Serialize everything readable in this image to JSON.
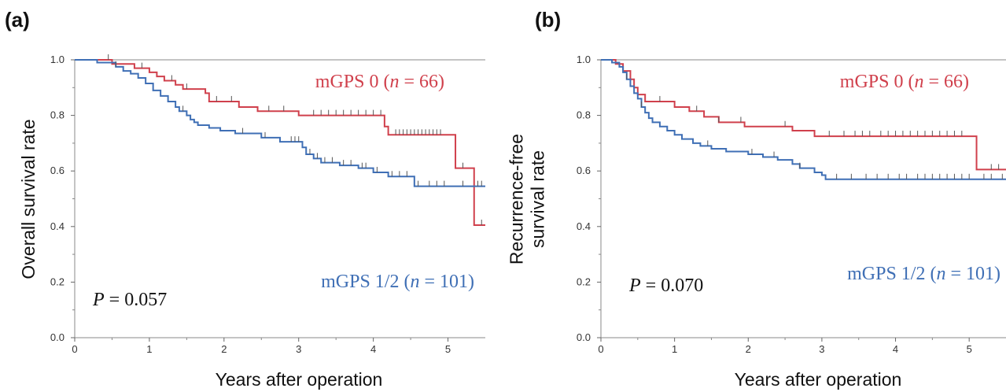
{
  "chart_data": [
    {
      "type": "line",
      "panel_label": "(a)",
      "xlabel": "Years after operation",
      "ylabel": [
        "Overall survival rate"
      ],
      "xlim": [
        0,
        5.5
      ],
      "ylim": [
        0,
        1
      ],
      "x_ticks": [
        "0",
        "1",
        "2",
        "3",
        "4",
        "5"
      ],
      "y_ticks": [
        "0.0",
        "0.2",
        "0.4",
        "0.6",
        "0.8",
        "1.0"
      ],
      "p_value": {
        "label": "P",
        "text": " = 0.057"
      },
      "series": [
        {
          "name": "mGPS 0",
          "n_label": "n",
          "n_text": " = 66",
          "color": "#d0404c",
          "steps": [
            [
              0,
              1.0
            ],
            [
              0.5,
              0.985
            ],
            [
              0.8,
              0.97
            ],
            [
              1.0,
              0.955
            ],
            [
              1.1,
              0.94
            ],
            [
              1.2,
              0.925
            ],
            [
              1.35,
              0.91
            ],
            [
              1.45,
              0.895
            ],
            [
              1.75,
              0.88
            ],
            [
              1.8,
              0.85
            ],
            [
              2.2,
              0.83
            ],
            [
              2.45,
              0.815
            ],
            [
              3.0,
              0.8
            ],
            [
              4.15,
              0.76
            ],
            [
              4.2,
              0.73
            ],
            [
              5.1,
              0.61
            ],
            [
              5.35,
              0.405
            ],
            [
              5.5,
              0.405
            ]
          ],
          "censor_x": [
            0.45,
            0.9,
            1.3,
            1.5,
            1.9,
            2.1,
            2.6,
            2.8,
            3.2,
            3.3,
            3.4,
            3.5,
            3.6,
            3.7,
            3.8,
            3.9,
            4.0,
            4.1,
            4.3,
            4.35,
            4.4,
            4.45,
            4.5,
            4.55,
            4.6,
            4.65,
            4.7,
            4.75,
            4.8,
            4.85,
            4.9,
            5.2,
            5.45
          ]
        },
        {
          "name": "mGPS 1/2",
          "n_label": "n",
          "n_text": " = 101",
          "color": "#3f6fb5",
          "steps": [
            [
              0,
              1.0
            ],
            [
              0.3,
              0.99
            ],
            [
              0.55,
              0.975
            ],
            [
              0.65,
              0.96
            ],
            [
              0.75,
              0.95
            ],
            [
              0.85,
              0.935
            ],
            [
              0.95,
              0.915
            ],
            [
              1.05,
              0.89
            ],
            [
              1.15,
              0.87
            ],
            [
              1.25,
              0.85
            ],
            [
              1.35,
              0.83
            ],
            [
              1.4,
              0.815
            ],
            [
              1.5,
              0.8
            ],
            [
              1.55,
              0.785
            ],
            [
              1.6,
              0.775
            ],
            [
              1.65,
              0.765
            ],
            [
              1.8,
              0.755
            ],
            [
              1.95,
              0.745
            ],
            [
              2.15,
              0.735
            ],
            [
              2.5,
              0.72
            ],
            [
              2.75,
              0.705
            ],
            [
              3.05,
              0.685
            ],
            [
              3.1,
              0.66
            ],
            [
              3.2,
              0.645
            ],
            [
              3.3,
              0.63
            ],
            [
              3.55,
              0.62
            ],
            [
              3.8,
              0.61
            ],
            [
              4.0,
              0.595
            ],
            [
              4.2,
              0.58
            ],
            [
              4.55,
              0.545
            ],
            [
              5.5,
              0.545
            ]
          ],
          "censor_x": [
            0.55,
            1.45,
            2.25,
            2.55,
            2.9,
            2.95,
            3.0,
            3.15,
            3.25,
            3.35,
            3.45,
            3.6,
            3.7,
            3.85,
            3.9,
            4.05,
            4.25,
            4.35,
            4.45,
            4.6,
            4.75,
            4.85,
            4.95,
            5.2,
            5.4,
            5.45
          ]
        }
      ]
    },
    {
      "type": "line",
      "panel_label": "(b)",
      "xlabel": "Years after operation",
      "ylabel": [
        "Recurrence-free",
        "survival rate"
      ],
      "xlim": [
        0,
        5.5
      ],
      "ylim": [
        0,
        1
      ],
      "x_ticks": [
        "0",
        "1",
        "2",
        "3",
        "4",
        "5"
      ],
      "y_ticks": [
        "0.0",
        "0.2",
        "0.4",
        "0.6",
        "0.8",
        "1.0"
      ],
      "p_value": {
        "label": "P",
        "text": " = 0.070"
      },
      "series": [
        {
          "name": "mGPS 0",
          "n_label": "n",
          "n_text": " = 66",
          "color": "#d0404c",
          "steps": [
            [
              0,
              1.0
            ],
            [
              0.2,
              0.985
            ],
            [
              0.3,
              0.96
            ],
            [
              0.4,
              0.93
            ],
            [
              0.45,
              0.9
            ],
            [
              0.5,
              0.875
            ],
            [
              0.6,
              0.85
            ],
            [
              1.0,
              0.83
            ],
            [
              1.2,
              0.815
            ],
            [
              1.4,
              0.795
            ],
            [
              1.6,
              0.775
            ],
            [
              1.95,
              0.76
            ],
            [
              2.6,
              0.745
            ],
            [
              2.9,
              0.725
            ],
            [
              5.1,
              0.605
            ],
            [
              5.5,
              0.605
            ]
          ],
          "censor_x": [
            0.8,
            1.3,
            1.6,
            1.9,
            2.5,
            3.1,
            3.3,
            3.45,
            3.55,
            3.65,
            3.8,
            3.9,
            4.0,
            4.1,
            4.2,
            4.3,
            4.4,
            4.5,
            4.6,
            4.7,
            4.8,
            4.9,
            5.3,
            5.4
          ]
        },
        {
          "name": "mGPS 1/2",
          "n_label": "n",
          "n_text": " = 101",
          "color": "#3f6fb5",
          "steps": [
            [
              0,
              1.0
            ],
            [
              0.15,
              0.99
            ],
            [
              0.25,
              0.975
            ],
            [
              0.3,
              0.955
            ],
            [
              0.35,
              0.93
            ],
            [
              0.4,
              0.905
            ],
            [
              0.45,
              0.88
            ],
            [
              0.5,
              0.86
            ],
            [
              0.55,
              0.83
            ],
            [
              0.6,
              0.81
            ],
            [
              0.65,
              0.79
            ],
            [
              0.7,
              0.775
            ],
            [
              0.8,
              0.76
            ],
            [
              0.9,
              0.745
            ],
            [
              1.0,
              0.73
            ],
            [
              1.1,
              0.715
            ],
            [
              1.25,
              0.7
            ],
            [
              1.35,
              0.69
            ],
            [
              1.5,
              0.68
            ],
            [
              1.7,
              0.67
            ],
            [
              2.0,
              0.66
            ],
            [
              2.2,
              0.65
            ],
            [
              2.4,
              0.64
            ],
            [
              2.6,
              0.625
            ],
            [
              2.7,
              0.61
            ],
            [
              2.9,
              0.595
            ],
            [
              3.0,
              0.585
            ],
            [
              3.05,
              0.57
            ],
            [
              5.5,
              0.57
            ]
          ],
          "censor_x": [
            0.35,
            0.55,
            1.45,
            2.05,
            2.35,
            2.7,
            3.2,
            3.4,
            3.6,
            3.75,
            3.9,
            4.05,
            4.15,
            4.3,
            4.4,
            4.5,
            4.6,
            4.7,
            4.8,
            4.9,
            5.0,
            5.2,
            5.3,
            5.45
          ]
        }
      ]
    }
  ]
}
